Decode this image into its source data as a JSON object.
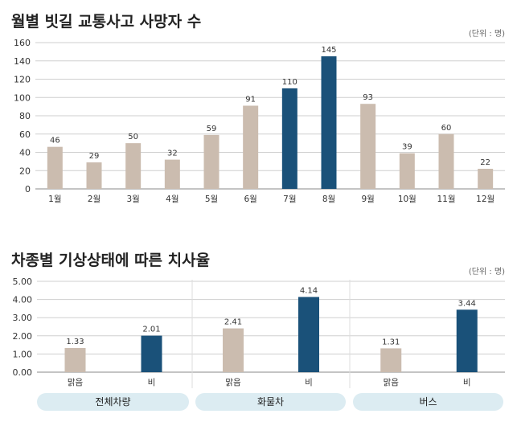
{
  "colors": {
    "default_bar": "#cbbcaf",
    "highlight_bar": "#1a5179",
    "grid": "#cfcfcf",
    "text": "#333333"
  },
  "chart_data": [
    {
      "type": "bar",
      "title": "월별 빗길 교통사고 사망자 수",
      "unit": "(단위 : 명)",
      "categories": [
        "1월",
        "2월",
        "3월",
        "4월",
        "5월",
        "6월",
        "7월",
        "8월",
        "9월",
        "10월",
        "11월",
        "12월"
      ],
      "values": [
        46,
        29,
        50,
        32,
        59,
        91,
        110,
        145,
        93,
        39,
        60,
        22
      ],
      "highlight": [
        "7월",
        "8월"
      ],
      "ylim": [
        0,
        160
      ],
      "yticks": [
        "0",
        "20",
        "40",
        "60",
        "80",
        "100",
        "120",
        "140",
        "160"
      ],
      "grid": true
    },
    {
      "type": "bar",
      "title": "차종별 기상상태에 따른 치사율",
      "unit": "(단위 : 명)",
      "ylim": [
        0,
        5
      ],
      "yticks": [
        "0.00",
        "1.00",
        "2.00",
        "3.00",
        "4.00",
        "5.00"
      ],
      "grid": true,
      "panels": [
        {
          "label": "전체차량",
          "categories": [
            "맑음",
            "비"
          ],
          "values": [
            1.33,
            2.01
          ],
          "value_labels": [
            "1.33",
            "2.01"
          ]
        },
        {
          "label": "화물차",
          "categories": [
            "맑음",
            "비"
          ],
          "values": [
            2.41,
            4.14
          ],
          "value_labels": [
            "2.41",
            "4.14"
          ]
        },
        {
          "label": "버스",
          "categories": [
            "맑음",
            "비"
          ],
          "values": [
            1.31,
            3.44
          ],
          "value_labels": [
            "1.31",
            "3.44"
          ]
        }
      ]
    }
  ]
}
